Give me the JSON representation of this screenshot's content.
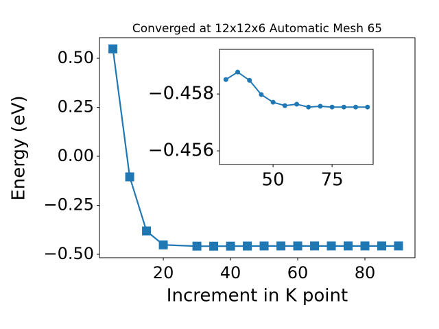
{
  "chart_data": [
    {
      "type": "line",
      "title": "Converged at 12x12x6 Automatic Mesh 65",
      "x_label": "Increment in K point",
      "y_label": "Energy (eV)",
      "marker": "square",
      "color": "#1f77b4",
      "x": [
        5,
        10,
        15,
        20,
        30,
        35,
        40,
        45,
        50,
        55,
        60,
        65,
        70,
        75,
        80,
        85,
        90
      ],
      "values": [
        0.548,
        -0.105,
        -0.381,
        -0.452,
        -0.45851,
        -0.45877,
        -0.45848,
        -0.45798,
        -0.45771,
        -0.45759,
        -0.45764,
        -0.45754,
        -0.45757,
        -0.45754,
        -0.45754,
        -0.45754,
        -0.45754
      ],
      "xlim": [
        1,
        94.9
      ],
      "ylim": [
        -0.5175,
        0.605
      ],
      "xticks": [
        20,
        40,
        60,
        80
      ],
      "yticks": [
        {
          "value": 0.5,
          "label": "0.50"
        },
        {
          "value": 0.25,
          "label": "0.25"
        },
        {
          "value": 0,
          "label": "0.00"
        },
        {
          "value": -0.25,
          "label": "−0.25"
        },
        {
          "value": -0.5,
          "label": "−0.50"
        }
      ]
    },
    {
      "type": "line",
      "marker": "circle",
      "color": "#1f77b4",
      "x": [
        30,
        35,
        40,
        45,
        50,
        55,
        60,
        65,
        70,
        75,
        80,
        85,
        90
      ],
      "values": [
        -0.45851,
        -0.45877,
        -0.45848,
        -0.45798,
        -0.45771,
        -0.45759,
        -0.45764,
        -0.45754,
        -0.45757,
        -0.45754,
        -0.45754,
        -0.45754,
        -0.45754
      ],
      "xlim": [
        27.3,
        92.4
      ],
      "ylim": [
        -0.45552,
        -0.45957
      ],
      "xticks": [
        50,
        75
      ],
      "yticks": [
        {
          "value": -0.458,
          "label": "−0.458"
        },
        {
          "value": -0.456,
          "label": "−0.456"
        }
      ]
    }
  ]
}
